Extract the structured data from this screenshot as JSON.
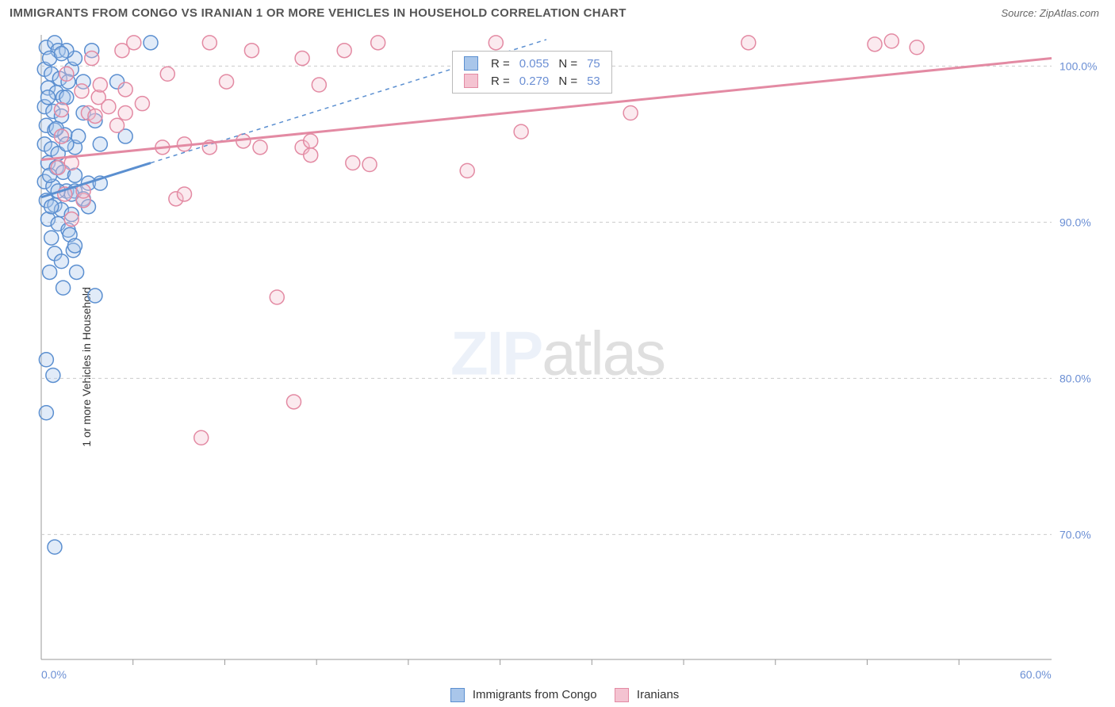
{
  "title": "IMMIGRANTS FROM CONGO VS IRANIAN 1 OR MORE VEHICLES IN HOUSEHOLD CORRELATION CHART",
  "source": "Source: ZipAtlas.com",
  "watermark": {
    "zip": "ZIP",
    "atlas": "atlas"
  },
  "chart": {
    "type": "scatter",
    "background_color": "#ffffff",
    "grid_color": "#cccccc",
    "grid_dash": "4 4",
    "border_color": "#999999",
    "ylabel": "1 or more Vehicles in Household",
    "label_fontsize": 14,
    "tick_fontsize": 14,
    "tick_color": "#6b8fd4",
    "xlim": [
      0,
      60
    ],
    "ylim": [
      62,
      102
    ],
    "x_ticks": [
      0,
      60
    ],
    "x_tick_labels": [
      "0.0%",
      "60.0%"
    ],
    "x_minor_ticks": [
      5.45,
      10.9,
      16.35,
      21.8,
      27.25,
      32.7,
      38.15,
      43.6,
      49.05,
      54.5
    ],
    "y_ticks": [
      70,
      80,
      90,
      100
    ],
    "y_tick_labels": [
      "70.0%",
      "80.0%",
      "90.0%",
      "100.0%"
    ],
    "marker_radius": 9,
    "series": [
      {
        "id": "congo",
        "label": "Immigrants from Congo",
        "color_stroke": "#5b8fd0",
        "color_fill": "#a9c6ea",
        "R": "0.055",
        "N": "75",
        "trend_solid": {
          "x1": 0,
          "y1": 91.6,
          "x2": 6.5,
          "y2": 93.8
        },
        "trend_dash": {
          "x1": 6.5,
          "y1": 93.8,
          "x2": 30,
          "y2": 101.7
        },
        "points": [
          [
            0.3,
            101.2
          ],
          [
            0.8,
            101.5
          ],
          [
            1.0,
            101.0
          ],
          [
            0.2,
            99.8
          ],
          [
            0.6,
            99.5
          ],
          [
            1.1,
            99.2
          ],
          [
            0.4,
            98.6
          ],
          [
            0.9,
            98.3
          ],
          [
            1.3,
            98.0
          ],
          [
            0.2,
            97.4
          ],
          [
            0.7,
            97.1
          ],
          [
            1.2,
            96.8
          ],
          [
            0.3,
            96.2
          ],
          [
            0.8,
            95.9
          ],
          [
            1.4,
            95.6
          ],
          [
            0.2,
            95.0
          ],
          [
            0.6,
            94.7
          ],
          [
            1.0,
            94.4
          ],
          [
            0.4,
            93.8
          ],
          [
            0.9,
            93.5
          ],
          [
            1.3,
            93.2
          ],
          [
            0.2,
            92.6
          ],
          [
            0.7,
            92.3
          ],
          [
            1.5,
            92.0
          ],
          [
            0.3,
            91.4
          ],
          [
            0.8,
            91.1
          ],
          [
            1.2,
            90.8
          ],
          [
            0.4,
            90.2
          ],
          [
            1.0,
            89.9
          ],
          [
            1.6,
            89.5
          ],
          [
            0.6,
            89.0
          ],
          [
            1.7,
            89.2
          ],
          [
            0.8,
            88.0
          ],
          [
            1.9,
            88.2
          ],
          [
            0.5,
            86.8
          ],
          [
            2.1,
            86.8
          ],
          [
            1.3,
            85.8
          ],
          [
            3.2,
            85.3
          ],
          [
            0.3,
            81.2
          ],
          [
            0.7,
            80.2
          ],
          [
            0.3,
            77.8
          ],
          [
            0.8,
            69.2
          ],
          [
            2.0,
            93.0
          ],
          [
            2.0,
            94.8
          ],
          [
            2.2,
            95.5
          ],
          [
            2.5,
            97.0
          ],
          [
            2.5,
            99.0
          ],
          [
            2.8,
            92.5
          ],
          [
            3.0,
            101.0
          ],
          [
            3.2,
            96.5
          ],
          [
            3.5,
            95.0
          ],
          [
            1.8,
            99.8
          ],
          [
            2.0,
            100.5
          ],
          [
            1.5,
            101.0
          ],
          [
            1.6,
            99.0
          ],
          [
            2.0,
            92.0
          ],
          [
            2.5,
            91.5
          ],
          [
            1.8,
            90.5
          ],
          [
            1.2,
            87.5
          ],
          [
            2.0,
            88.5
          ],
          [
            2.8,
            91.0
          ],
          [
            3.5,
            92.5
          ],
          [
            0.5,
            100.5
          ],
          [
            1.2,
            100.8
          ],
          [
            1.5,
            98.0
          ],
          [
            0.4,
            98.0
          ],
          [
            0.9,
            96.0
          ],
          [
            1.5,
            95.0
          ],
          [
            0.5,
            93.0
          ],
          [
            1.0,
            92.0
          ],
          [
            1.8,
            91.8
          ],
          [
            0.6,
            91.0
          ],
          [
            4.5,
            99.0
          ],
          [
            5.0,
            95.5
          ],
          [
            6.5,
            101.5
          ]
        ]
      },
      {
        "id": "iranian",
        "label": "Iranians",
        "color_stroke": "#e38aa3",
        "color_fill": "#f4c3d1",
        "R": "0.279",
        "N": "53",
        "trend_solid": {
          "x1": 0,
          "y1": 94.0,
          "x2": 60,
          "y2": 100.5
        },
        "trend_dash": null,
        "points": [
          [
            1.0,
            93.5
          ],
          [
            1.2,
            95.5
          ],
          [
            1.2,
            97.2
          ],
          [
            1.4,
            91.8
          ],
          [
            1.5,
            99.5
          ],
          [
            1.8,
            93.8
          ],
          [
            1.8,
            90.2
          ],
          [
            2.4,
            98.4
          ],
          [
            2.5,
            91.4
          ],
          [
            2.5,
            92.0
          ],
          [
            2.8,
            97.0
          ],
          [
            3.0,
            100.5
          ],
          [
            3.2,
            96.8
          ],
          [
            3.4,
            98.0
          ],
          [
            3.5,
            98.8
          ],
          [
            4.0,
            97.4
          ],
          [
            4.5,
            96.2
          ],
          [
            4.8,
            101.0
          ],
          [
            5.0,
            98.5
          ],
          [
            5.0,
            97.0
          ],
          [
            5.5,
            101.5
          ],
          [
            6.0,
            97.6
          ],
          [
            7.2,
            94.8
          ],
          [
            7.5,
            99.5
          ],
          [
            8.0,
            91.5
          ],
          [
            8.5,
            91.8
          ],
          [
            8.5,
            95.0
          ],
          [
            9.5,
            76.2
          ],
          [
            10.0,
            94.8
          ],
          [
            10.0,
            101.5
          ],
          [
            11.0,
            99.0
          ],
          [
            12.0,
            95.2
          ],
          [
            12.5,
            101.0
          ],
          [
            13.0,
            94.8
          ],
          [
            14.0,
            85.2
          ],
          [
            15.0,
            78.5
          ],
          [
            15.5,
            94.8
          ],
          [
            15.5,
            100.5
          ],
          [
            16.0,
            95.2
          ],
          [
            16.0,
            94.3
          ],
          [
            16.5,
            98.8
          ],
          [
            18.0,
            101.0
          ],
          [
            18.5,
            93.8
          ],
          [
            19.5,
            93.7
          ],
          [
            20.0,
            101.5
          ],
          [
            25.3,
            93.3
          ],
          [
            27.0,
            101.5
          ],
          [
            28.5,
            95.8
          ],
          [
            35.0,
            97.0
          ],
          [
            42.0,
            101.5
          ],
          [
            49.5,
            101.4
          ],
          [
            50.5,
            101.6
          ],
          [
            52.0,
            101.2
          ]
        ]
      }
    ],
    "legend_top": {
      "cols": [
        "R =",
        "N ="
      ]
    },
    "legend_bottom": [
      "Immigrants from Congo",
      "Iranians"
    ]
  }
}
